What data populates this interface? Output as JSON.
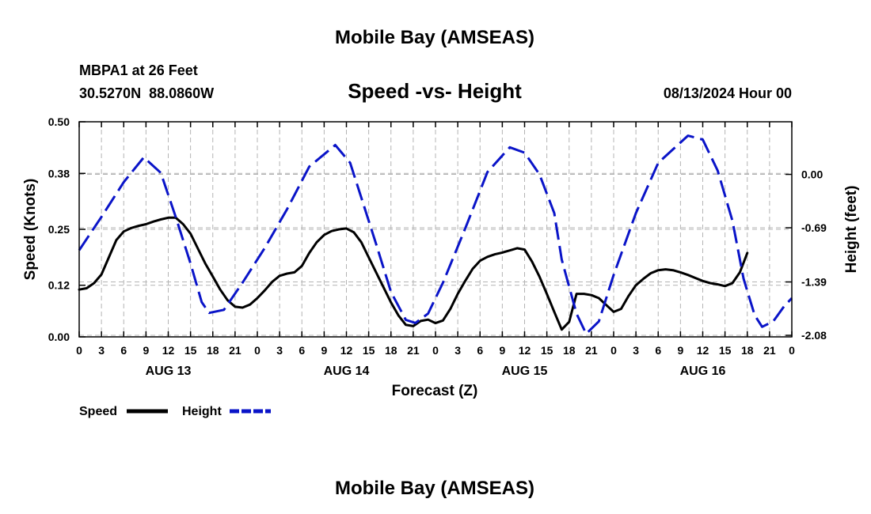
{
  "page": {
    "title": "Mobile Bay (AMSEAS)",
    "footer_title": "Mobile Bay (AMSEAS)",
    "station_line": "MBPA1 at 26 Feet",
    "coords_line": "30.5270N  88.0860W",
    "chart_title": "Speed -vs- Height",
    "datetime_line": "08/13/2024 Hour 00"
  },
  "colors": {
    "speed": "#000000",
    "height": "#0a14c8",
    "grid": "#b4b4b4"
  },
  "chart_data": {
    "type": "line",
    "title": "Speed -vs- Height",
    "xlabel": "Forecast (Z)",
    "ylabel_left": "Speed (Knots)",
    "ylabel_right": "Height (feet)",
    "x_hours_range": [
      0,
      96
    ],
    "x_tick_labels": [
      "0",
      "3",
      "6",
      "9",
      "12",
      "15",
      "18",
      "21",
      "0",
      "3",
      "6",
      "9",
      "12",
      "15",
      "18",
      "21",
      "0",
      "3",
      "6",
      "9",
      "12",
      "15",
      "18",
      "21",
      "0",
      "3",
      "6",
      "9",
      "12",
      "15",
      "18",
      "21",
      "0"
    ],
    "day_labels": [
      {
        "label": "AUG 13",
        "hour": 12
      },
      {
        "label": "AUG 14",
        "hour": 36
      },
      {
        "label": "AUG 15",
        "hour": 60
      },
      {
        "label": "AUG 16",
        "hour": 84
      }
    ],
    "y_left": {
      "range": [
        0,
        0.5
      ],
      "ticks": [
        "0.00",
        "0.12",
        "0.25",
        "0.38",
        "0.50"
      ]
    },
    "y_right": {
      "range": [
        -2.1,
        0.68
      ],
      "ticks": [
        {
          "label": "0.00",
          "value": 0.0
        },
        {
          "label": "-0.69",
          "value": -0.69
        },
        {
          "label": "-1.39",
          "value": -1.39
        },
        {
          "label": "-2.08",
          "value": -2.08
        }
      ]
    },
    "legend": [
      {
        "name": "Speed",
        "style": "solid"
      },
      {
        "name": "Height",
        "style": "dashed"
      }
    ],
    "series": [
      {
        "name": "Speed",
        "axis": "left",
        "style": "solid",
        "points": [
          [
            0,
            0.11
          ],
          [
            1,
            0.113
          ],
          [
            2,
            0.125
          ],
          [
            3,
            0.145
          ],
          [
            4,
            0.185
          ],
          [
            5,
            0.225
          ],
          [
            6,
            0.245
          ],
          [
            7,
            0.253
          ],
          [
            8,
            0.258
          ],
          [
            9,
            0.262
          ],
          [
            10,
            0.268
          ],
          [
            11,
            0.273
          ],
          [
            12,
            0.277
          ],
          [
            13,
            0.277
          ],
          [
            14,
            0.262
          ],
          [
            15,
            0.24
          ],
          [
            16,
            0.205
          ],
          [
            17,
            0.17
          ],
          [
            18,
            0.14
          ],
          [
            19,
            0.11
          ],
          [
            20,
            0.085
          ],
          [
            21,
            0.07
          ],
          [
            22,
            0.068
          ],
          [
            23,
            0.075
          ],
          [
            24,
            0.09
          ],
          [
            25,
            0.108
          ],
          [
            26,
            0.128
          ],
          [
            27,
            0.142
          ],
          [
            28,
            0.147
          ],
          [
            29,
            0.15
          ],
          [
            30,
            0.165
          ],
          [
            31,
            0.195
          ],
          [
            32,
            0.22
          ],
          [
            33,
            0.237
          ],
          [
            34,
            0.246
          ],
          [
            35,
            0.25
          ],
          [
            36,
            0.252
          ],
          [
            37,
            0.243
          ],
          [
            38,
            0.22
          ],
          [
            39,
            0.185
          ],
          [
            40,
            0.15
          ],
          [
            41,
            0.115
          ],
          [
            42,
            0.08
          ],
          [
            43,
            0.05
          ],
          [
            44,
            0.028
          ],
          [
            45,
            0.025
          ],
          [
            46,
            0.037
          ],
          [
            47,
            0.04
          ],
          [
            48,
            0.032
          ],
          [
            49,
            0.038
          ],
          [
            50,
            0.065
          ],
          [
            51,
            0.1
          ],
          [
            52,
            0.13
          ],
          [
            53,
            0.158
          ],
          [
            54,
            0.177
          ],
          [
            55,
            0.186
          ],
          [
            56,
            0.192
          ],
          [
            57,
            0.196
          ],
          [
            58,
            0.201
          ],
          [
            59,
            0.206
          ],
          [
            60,
            0.203
          ],
          [
            61,
            0.175
          ],
          [
            62,
            0.14
          ],
          [
            63,
            0.1
          ],
          [
            64,
            0.058
          ],
          [
            65,
            0.017
          ],
          [
            66,
            0.035
          ],
          [
            67,
            0.1
          ],
          [
            68,
            0.1
          ],
          [
            69,
            0.097
          ],
          [
            70,
            0.09
          ],
          [
            71,
            0.074
          ],
          [
            72,
            0.058
          ],
          [
            73,
            0.065
          ],
          [
            74,
            0.095
          ],
          [
            75,
            0.12
          ],
          [
            76,
            0.135
          ],
          [
            77,
            0.148
          ],
          [
            78,
            0.155
          ],
          [
            79,
            0.157
          ],
          [
            80,
            0.155
          ],
          [
            81,
            0.15
          ],
          [
            82,
            0.144
          ],
          [
            83,
            0.137
          ],
          [
            84,
            0.13
          ],
          [
            85,
            0.125
          ],
          [
            86,
            0.122
          ],
          [
            87,
            0.118
          ],
          [
            88,
            0.125
          ],
          [
            89,
            0.15
          ],
          [
            90,
            0.195
          ]
        ]
      },
      {
        "name": "Height",
        "axis": "right",
        "style": "dashed",
        "points": [
          [
            0,
            -0.98
          ],
          [
            3,
            -0.55
          ],
          [
            6,
            -0.1
          ],
          [
            8.7,
            0.22
          ],
          [
            11,
            0.02
          ],
          [
            13,
            -0.55
          ],
          [
            15,
            -1.15
          ],
          [
            16.5,
            -1.65
          ],
          [
            17.5,
            -1.79
          ],
          [
            19.5,
            -1.75
          ],
          [
            22,
            -1.4
          ],
          [
            25,
            -0.95
          ],
          [
            28,
            -0.45
          ],
          [
            31,
            0.1
          ],
          [
            34.5,
            0.38
          ],
          [
            36.5,
            0.15
          ],
          [
            38,
            -0.3
          ],
          [
            40,
            -0.9
          ],
          [
            42,
            -1.52
          ],
          [
            44,
            -1.88
          ],
          [
            45.3,
            -1.92
          ],
          [
            47,
            -1.8
          ],
          [
            49,
            -1.4
          ],
          [
            52,
            -0.7
          ],
          [
            55,
            0.03
          ],
          [
            58,
            0.35
          ],
          [
            60,
            0.28
          ],
          [
            62,
            0.0
          ],
          [
            64,
            -0.5
          ],
          [
            65,
            -1.1
          ],
          [
            67,
            -1.8
          ],
          [
            68.3,
            -2.06
          ],
          [
            70,
            -1.9
          ],
          [
            72,
            -1.3
          ],
          [
            75,
            -0.5
          ],
          [
            78,
            0.15
          ],
          [
            82,
            0.5
          ],
          [
            84,
            0.45
          ],
          [
            86,
            0.05
          ],
          [
            88,
            -0.6
          ],
          [
            89.5,
            -1.35
          ],
          [
            91,
            -1.82
          ],
          [
            92,
            -1.97
          ],
          [
            93.5,
            -1.9
          ],
          [
            95,
            -1.7
          ],
          [
            96,
            -1.6
          ]
        ]
      }
    ]
  }
}
